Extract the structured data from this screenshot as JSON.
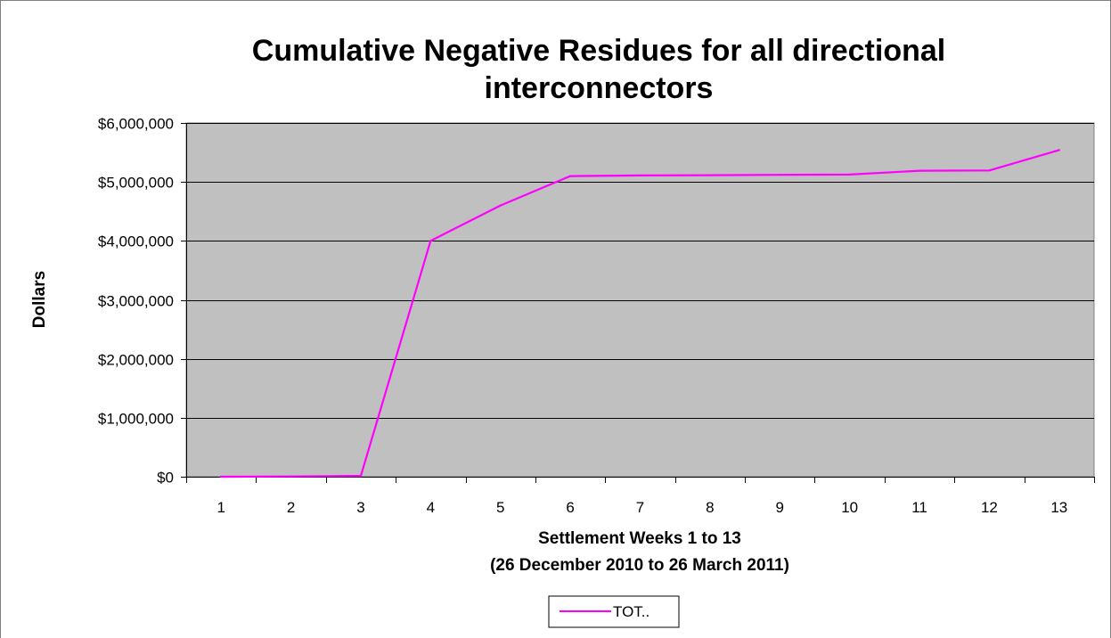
{
  "chart_data": {
    "type": "line",
    "title_lines": [
      "Cumulative Negative Residues for all directional",
      "interconnectors"
    ],
    "xlabel_lines": [
      "Settlement Weeks  1 to 13",
      "(26 December 2010 to 26 March 2011)"
    ],
    "ylabel": "Dollars",
    "x": [
      "1",
      "2",
      "3",
      "4",
      "5",
      "6",
      "7",
      "8",
      "9",
      "10",
      "11",
      "12",
      "13"
    ],
    "ylim": [
      0,
      6000000
    ],
    "yticks": [
      0,
      1000000,
      2000000,
      3000000,
      4000000,
      5000000,
      6000000
    ],
    "ytick_labels": [
      "$0",
      "$1,000,000",
      "$2,000,000",
      "$3,000,000",
      "$4,000,000",
      "$5,000,000",
      "$6,000,000"
    ],
    "grid": true,
    "legend_position": "bottom-center",
    "series": [
      {
        "name": "TOT..",
        "color": "#ff00ff",
        "values": [
          0,
          5000,
          15000,
          4000000,
          4600000,
          5100000,
          5110000,
          5115000,
          5120000,
          5125000,
          5190000,
          5195000,
          5540000
        ]
      }
    ]
  }
}
